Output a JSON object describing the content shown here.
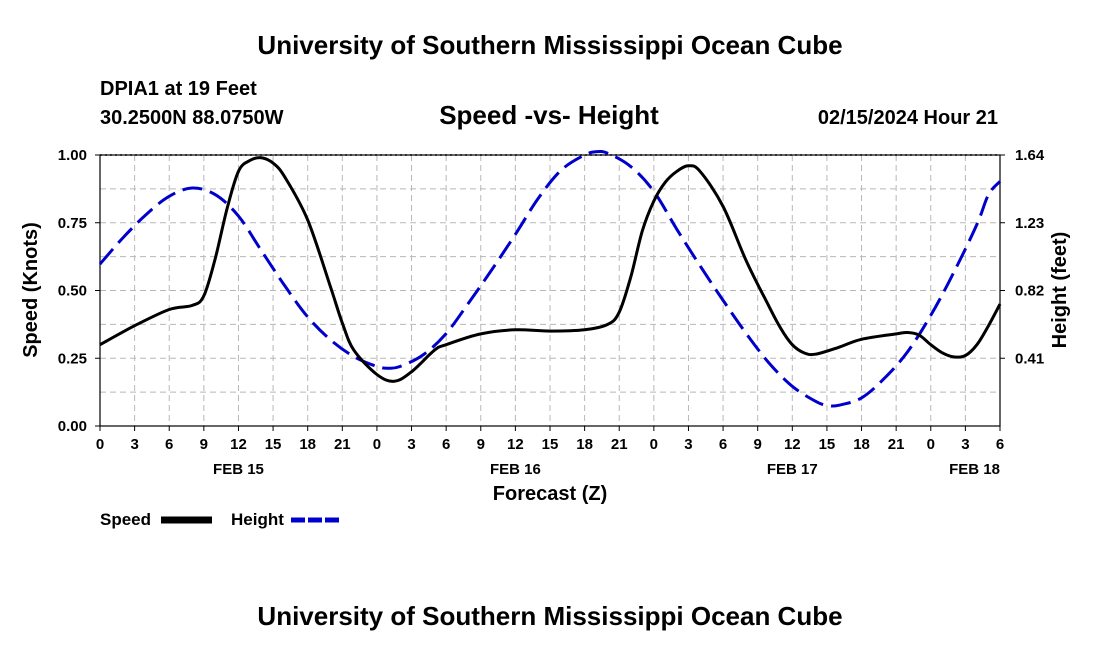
{
  "header": {
    "title": "University of Southern Mississippi Ocean Cube",
    "station": "DPIA1 at 19 Feet",
    "coords": "30.2500N  88.0750W",
    "date": "02/15/2024 Hour 21",
    "footer_title": "University of Southern Mississippi Ocean Cube"
  },
  "chart_data": {
    "type": "line",
    "title": "Speed -vs- Height",
    "xlabel": "Forecast (Z)",
    "ylabel": "Speed (Knots)",
    "y2label": "Height (feet)",
    "xlim": [
      0,
      78
    ],
    "ylim": [
      0,
      1
    ],
    "y2lim": [
      0,
      1.64
    ],
    "grid": true,
    "x_tick_labels": [
      "0",
      "3",
      "6",
      "9",
      "12",
      "15",
      "18",
      "21",
      "0",
      "3",
      "6",
      "9",
      "12",
      "15",
      "18",
      "21",
      "0",
      "3",
      "6",
      "9",
      "12",
      "15",
      "18",
      "21",
      "0",
      "3",
      "6"
    ],
    "y_tick_labels": [
      "0.00",
      "0.25",
      "0.50",
      "0.75",
      "1.00"
    ],
    "y2_tick_labels": [
      "0.41",
      "0.82",
      "1.23",
      "1.64"
    ],
    "date_labels": [
      {
        "label": "FEB 15",
        "hour": 12
      },
      {
        "label": "FEB 16",
        "hour": 36
      },
      {
        "label": "FEB 17",
        "hour": 60
      },
      {
        "label": "FEB 18",
        "hour": 78
      }
    ],
    "legend_position": "bottom-left",
    "series": [
      {
        "name": "Speed",
        "axis": "left",
        "color": "#000000",
        "dash": "solid",
        "points": [
          [
            0,
            0.3
          ],
          [
            3,
            0.37
          ],
          [
            6,
            0.43
          ],
          [
            8,
            0.445
          ],
          [
            9,
            0.48
          ],
          [
            10,
            0.62
          ],
          [
            11,
            0.8
          ],
          [
            12,
            0.94
          ],
          [
            13,
            0.98
          ],
          [
            14,
            0.99
          ],
          [
            15,
            0.97
          ],
          [
            16,
            0.92
          ],
          [
            18,
            0.76
          ],
          [
            20,
            0.51
          ],
          [
            21,
            0.38
          ],
          [
            22,
            0.28
          ],
          [
            24,
            0.19
          ],
          [
            25.5,
            0.165
          ],
          [
            27,
            0.2
          ],
          [
            29,
            0.28
          ],
          [
            30,
            0.3
          ],
          [
            33,
            0.34
          ],
          [
            36,
            0.355
          ],
          [
            39,
            0.35
          ],
          [
            42,
            0.355
          ],
          [
            44,
            0.375
          ],
          [
            45,
            0.42
          ],
          [
            46,
            0.55
          ],
          [
            47,
            0.72
          ],
          [
            48,
            0.83
          ],
          [
            49,
            0.9
          ],
          [
            50,
            0.94
          ],
          [
            51,
            0.96
          ],
          [
            52,
            0.94
          ],
          [
            54,
            0.81
          ],
          [
            56,
            0.61
          ],
          [
            58,
            0.44
          ],
          [
            59,
            0.36
          ],
          [
            60,
            0.3
          ],
          [
            61,
            0.27
          ],
          [
            62,
            0.265
          ],
          [
            64,
            0.29
          ],
          [
            66,
            0.32
          ],
          [
            69,
            0.34
          ],
          [
            70,
            0.345
          ],
          [
            71,
            0.335
          ],
          [
            72,
            0.3
          ],
          [
            73,
            0.27
          ],
          [
            74,
            0.255
          ],
          [
            75,
            0.26
          ],
          [
            76,
            0.3
          ],
          [
            77,
            0.37
          ],
          [
            78,
            0.45
          ]
        ]
      },
      {
        "name": "Height",
        "axis": "right",
        "color": "#0000cc",
        "dash": "dashed",
        "points": [
          [
            0,
            0.98
          ],
          [
            2,
            1.14
          ],
          [
            4,
            1.28
          ],
          [
            6,
            1.39
          ],
          [
            8,
            1.44
          ],
          [
            10,
            1.4
          ],
          [
            12,
            1.27
          ],
          [
            14,
            1.06
          ],
          [
            16,
            0.85
          ],
          [
            18,
            0.66
          ],
          [
            20,
            0.52
          ],
          [
            22,
            0.42
          ],
          [
            24,
            0.36
          ],
          [
            25,
            0.35
          ],
          [
            26,
            0.36
          ],
          [
            28,
            0.43
          ],
          [
            30,
            0.56
          ],
          [
            32,
            0.75
          ],
          [
            34,
            0.95
          ],
          [
            36,
            1.16
          ],
          [
            38,
            1.38
          ],
          [
            40,
            1.55
          ],
          [
            42,
            1.64
          ],
          [
            43,
            1.66
          ],
          [
            44,
            1.65
          ],
          [
            46,
            1.57
          ],
          [
            48,
            1.42
          ],
          [
            50,
            1.19
          ],
          [
            52,
            0.97
          ],
          [
            54,
            0.76
          ],
          [
            56,
            0.56
          ],
          [
            58,
            0.38
          ],
          [
            60,
            0.24
          ],
          [
            62,
            0.15
          ],
          [
            63,
            0.125
          ],
          [
            64,
            0.125
          ],
          [
            66,
            0.17
          ],
          [
            68,
            0.29
          ],
          [
            70,
            0.45
          ],
          [
            72,
            0.67
          ],
          [
            74,
            0.93
          ],
          [
            76,
            1.22
          ],
          [
            77,
            1.4
          ],
          [
            78,
            1.48
          ]
        ]
      }
    ]
  }
}
